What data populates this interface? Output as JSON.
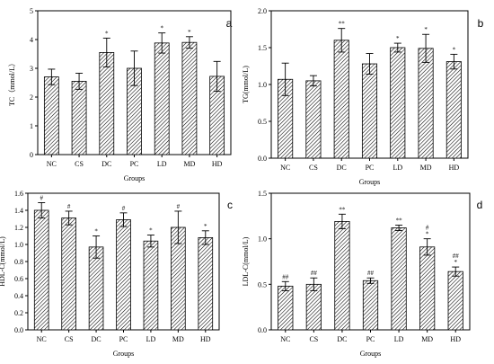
{
  "colors": {
    "bar_fill": "#ffffff",
    "bar_hatch": "#000000",
    "axis": "#000000"
  },
  "chart_data": [
    {
      "panel": "a",
      "type": "bar",
      "ylabel": "TC（mmol/L）",
      "xlabel": "Groups",
      "categories": [
        "NC",
        "CS",
        "DC",
        "PC",
        "LD",
        "MD",
        "HD"
      ],
      "values": [
        2.7,
        2.55,
        3.55,
        3.0,
        3.88,
        3.9,
        2.72
      ],
      "errors": [
        0.27,
        0.28,
        0.5,
        0.6,
        0.35,
        0.2,
        0.52
      ],
      "significance": [
        "",
        "",
        "*",
        "",
        "*",
        "*",
        ""
      ],
      "ylim": [
        0,
        5
      ],
      "yticks": [
        "0",
        "1",
        "2",
        "3",
        "4",
        "5"
      ],
      "grid": false
    },
    {
      "panel": "b",
      "type": "bar",
      "ylabel": "TG(mmol/L)",
      "xlabel": "Groups",
      "categories": [
        "NC",
        "CS",
        "DC",
        "PC",
        "LD",
        "MD",
        "HD"
      ],
      "values": [
        1.07,
        1.05,
        1.6,
        1.28,
        1.5,
        1.49,
        1.31
      ],
      "errors": [
        0.22,
        0.07,
        0.16,
        0.14,
        0.06,
        0.19,
        0.1
      ],
      "significance": [
        "",
        "",
        "**",
        "",
        "*",
        "*",
        "*"
      ],
      "ylim": [
        0,
        2.0
      ],
      "yticks": [
        "0.0",
        "0.5",
        "1.0",
        "1.5",
        "2.0"
      ],
      "grid": false
    },
    {
      "panel": "c",
      "type": "bar",
      "ylabel": "HDL-C(mmol/L)",
      "xlabel": "Groups",
      "categories": [
        "NC",
        "CS",
        "DC",
        "PC",
        "LD",
        "MD",
        "HD"
      ],
      "values": [
        1.4,
        1.31,
        0.97,
        1.29,
        1.04,
        1.2,
        1.08
      ],
      "errors": [
        0.09,
        0.08,
        0.13,
        0.08,
        0.07,
        0.19,
        0.08
      ],
      "significance": [
        "#",
        "#",
        "*",
        "#",
        "*",
        "#",
        "*"
      ],
      "ylim": [
        0,
        1.6
      ],
      "yticks": [
        "0.0",
        "0.2",
        "0.4",
        "0.6",
        "0.8",
        "1.0",
        "1.2",
        "1.4",
        "1.6"
      ],
      "grid": false
    },
    {
      "panel": "d",
      "type": "bar",
      "ylabel": "LDL-C(mmol/L)",
      "xlabel": "Groups",
      "categories": [
        "NC",
        "CS",
        "DC",
        "PC",
        "LD",
        "MD",
        "HD"
      ],
      "values": [
        0.48,
        0.5,
        1.19,
        0.54,
        1.12,
        0.91,
        0.64
      ],
      "errors": [
        0.05,
        0.07,
        0.08,
        0.03,
        0.03,
        0.09,
        0.05
      ],
      "significance": [
        "##",
        "##",
        "**",
        "##",
        "**",
        "#\n*",
        "##\n*"
      ],
      "ylim": [
        0,
        1.5
      ],
      "yticks": [
        "0.0",
        "0.5",
        "1.0",
        "1.5"
      ],
      "grid": false
    }
  ]
}
